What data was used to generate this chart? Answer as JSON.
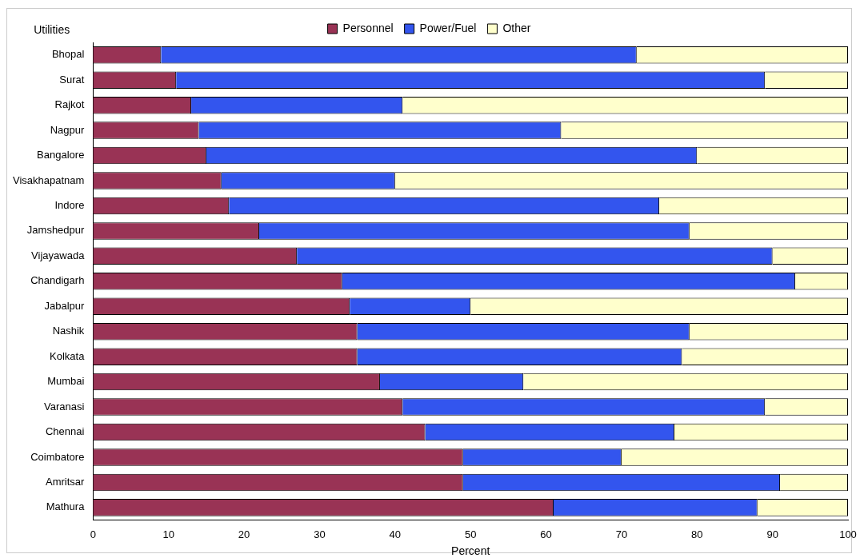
{
  "chart_data": {
    "type": "bar",
    "orientation": "horizontal",
    "stacked": true,
    "ylabel": "Utilities",
    "xlabel": "Percent",
    "categories": [
      "Bhopal",
      "Surat",
      "Rajkot",
      "Nagpur",
      "Bangalore",
      "Visakhapatnam",
      "Indore",
      "Jamshedpur",
      "Vijayawada",
      "Chandigarh",
      "Jabalpur",
      "Nashik",
      "Kolkata",
      "Mumbai",
      "Varanasi",
      "Chennai",
      "Coimbatore",
      "Amritsar",
      "Mathura"
    ],
    "series": [
      {
        "name": "Personnel",
        "color": "#993355",
        "values": [
          9,
          11,
          13,
          14,
          15,
          17,
          18,
          22,
          27,
          33,
          34,
          35,
          35,
          38,
          41,
          44,
          49,
          49,
          61
        ]
      },
      {
        "name": "Power/Fuel",
        "color": "#3355ee",
        "values": [
          63,
          78,
          28,
          48,
          65,
          23,
          57,
          57,
          63,
          60,
          16,
          44,
          43,
          19,
          48,
          33,
          21,
          42,
          27
        ]
      },
      {
        "name": "Other",
        "color": "#ffffcc",
        "values": [
          28,
          11,
          59,
          38,
          20,
          60,
          25,
          21,
          10,
          7,
          50,
          21,
          22,
          43,
          11,
          23,
          30,
          9,
          12
        ]
      }
    ],
    "xlim": [
      0,
      100
    ],
    "xticks": [
      0,
      10,
      20,
      30,
      40,
      50,
      60,
      70,
      80,
      90,
      100
    ],
    "grid": false,
    "legend": "top"
  }
}
